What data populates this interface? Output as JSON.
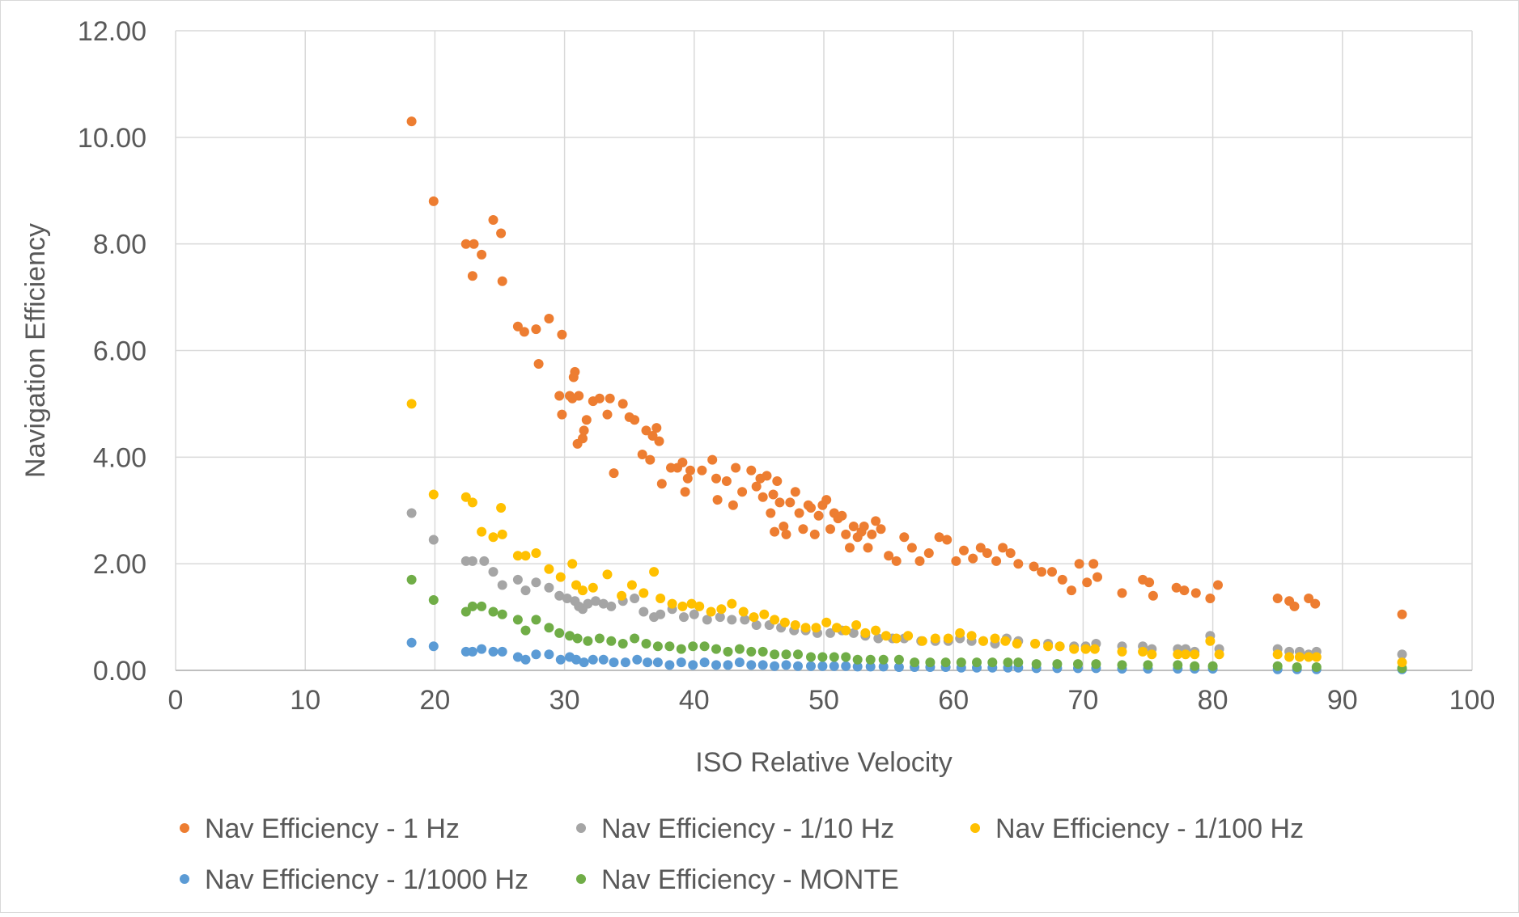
{
  "chart_data": {
    "type": "scatter",
    "title": "",
    "xlabel": "ISO Relative Velocity",
    "ylabel": "Navigation Efficiency",
    "xlim": [
      0,
      100
    ],
    "ylim": [
      0,
      12
    ],
    "x_ticks": [
      "0",
      "10",
      "20",
      "30",
      "40",
      "50",
      "60",
      "70",
      "80",
      "90",
      "100"
    ],
    "y_ticks": [
      "0.00",
      "2.00",
      "4.00",
      "6.00",
      "8.00",
      "10.00",
      "12.00"
    ],
    "grid": true,
    "legend_position": "bottom",
    "series": [
      {
        "name": "Nav Efficiency - 1 Hz",
        "color": "#ED7D31",
        "x": [
          18.2,
          19.9,
          22.4,
          22.9,
          23.0,
          23.6,
          24.5,
          25.1,
          25.2,
          26.4,
          26.9,
          27.8,
          28.0,
          28.8,
          29.6,
          29.8,
          29.8,
          30.4,
          30.6,
          30.7,
          30.8,
          31.0,
          31.1,
          31.4,
          31.5,
          31.7,
          32.2,
          32.7,
          33.3,
          33.5,
          33.8,
          34.5,
          35.0,
          35.4,
          36.0,
          36.3,
          36.6,
          36.8,
          37.1,
          37.3,
          37.5,
          38.2,
          38.7,
          39.1,
          39.3,
          39.5,
          39.7,
          40.6,
          41.4,
          41.7,
          41.8,
          42.5,
          43.0,
          43.2,
          43.7,
          44.4,
          44.8,
          45.1,
          45.3,
          45.6,
          45.9,
          46.1,
          46.2,
          46.4,
          46.6,
          46.9,
          47.1,
          47.4,
          47.8,
          48.1,
          48.4,
          48.8,
          49.0,
          49.3,
          49.6,
          49.9,
          50.2,
          50.5,
          50.8,
          51.1,
          51.4,
          51.7,
          52.0,
          52.3,
          52.6,
          52.9,
          53.1,
          53.4,
          53.7,
          54.0,
          54.4,
          55.0,
          55.6,
          56.2,
          56.8,
          57.4,
          58.1,
          58.9,
          59.5,
          60.2,
          60.8,
          61.5,
          62.1,
          62.6,
          63.3,
          63.8,
          64.4,
          65.0,
          66.2,
          66.8,
          67.6,
          68.4,
          69.1,
          69.7,
          70.3,
          70.8,
          71.1,
          73.0,
          74.6,
          75.1,
          75.4,
          77.2,
          77.8,
          78.7,
          79.8,
          80.4,
          85.0,
          85.9,
          86.3,
          87.4,
          87.9,
          94.6
        ],
        "y": [
          10.3,
          8.8,
          8.0,
          7.4,
          8.0,
          7.8,
          8.45,
          8.2,
          7.3,
          6.45,
          6.35,
          6.4,
          5.75,
          6.6,
          5.15,
          4.8,
          6.3,
          5.15,
          5.1,
          5.5,
          5.6,
          4.25,
          5.15,
          4.35,
          4.5,
          4.7,
          5.05,
          5.1,
          4.8,
          5.1,
          3.7,
          5.0,
          4.75,
          4.7,
          4.05,
          4.5,
          3.95,
          4.4,
          4.55,
          4.3,
          3.5,
          3.8,
          3.8,
          3.9,
          3.35,
          3.6,
          3.75,
          3.75,
          3.95,
          3.6,
          3.2,
          3.55,
          3.1,
          3.8,
          3.35,
          3.75,
          3.45,
          3.6,
          3.25,
          3.65,
          2.95,
          3.3,
          2.6,
          3.55,
          3.15,
          2.7,
          2.55,
          3.15,
          3.35,
          2.95,
          2.65,
          3.1,
          3.05,
          2.55,
          2.9,
          3.1,
          3.2,
          2.65,
          2.95,
          2.85,
          2.9,
          2.55,
          2.3,
          2.7,
          2.5,
          2.6,
          2.7,
          2.3,
          2.55,
          2.8,
          2.65,
          2.15,
          2.05,
          2.5,
          2.3,
          2.05,
          2.2,
          2.5,
          2.45,
          2.05,
          2.25,
          2.1,
          2.3,
          2.2,
          2.05,
          2.3,
          2.2,
          2.0,
          1.95,
          1.85,
          1.85,
          1.7,
          1.5,
          2.0,
          1.65,
          2.0,
          1.75,
          1.45,
          1.7,
          1.65,
          1.4,
          1.55,
          1.5,
          1.45,
          1.35,
          1.6,
          1.35,
          1.3,
          1.2,
          1.35,
          1.25,
          1.05
        ]
      },
      {
        "name": "Nav Efficiency - 1/10 Hz",
        "color": "#A5A5A5",
        "x": [
          18.2,
          19.9,
          22.4,
          22.9,
          23.8,
          24.5,
          25.2,
          26.4,
          27.0,
          27.8,
          28.8,
          29.6,
          30.2,
          30.8,
          31.1,
          31.4,
          31.8,
          32.4,
          33.0,
          33.6,
          34.5,
          35.4,
          36.1,
          36.9,
          37.4,
          38.3,
          39.2,
          40.0,
          41.0,
          42.0,
          42.9,
          43.9,
          44.8,
          45.8,
          46.7,
          47.7,
          48.6,
          49.5,
          50.5,
          51.4,
          52.3,
          53.2,
          54.2,
          55.3,
          56.2,
          57.5,
          58.6,
          59.6,
          60.5,
          61.4,
          62.3,
          63.2,
          64.1,
          65.0,
          66.3,
          67.3,
          68.2,
          69.3,
          70.2,
          71.0,
          73.0,
          74.6,
          75.3,
          77.3,
          77.9,
          78.6,
          79.8,
          80.5,
          85.0,
          85.9,
          86.7,
          87.4,
          88.0,
          94.6
        ],
        "y": [
          2.95,
          2.45,
          2.05,
          2.05,
          2.05,
          1.85,
          1.6,
          1.7,
          1.5,
          1.65,
          1.55,
          1.4,
          1.35,
          1.3,
          1.2,
          1.15,
          1.25,
          1.3,
          1.25,
          1.2,
          1.3,
          1.35,
          1.1,
          1.0,
          1.05,
          1.15,
          1.0,
          1.05,
          0.95,
          1.0,
          0.95,
          0.95,
          0.85,
          0.85,
          0.8,
          0.75,
          0.75,
          0.7,
          0.7,
          0.75,
          0.7,
          0.65,
          0.6,
          0.6,
          0.6,
          0.55,
          0.55,
          0.55,
          0.6,
          0.55,
          0.55,
          0.5,
          0.6,
          0.55,
          0.5,
          0.5,
          0.45,
          0.45,
          0.45,
          0.5,
          0.45,
          0.45,
          0.4,
          0.4,
          0.4,
          0.35,
          0.65,
          0.4,
          0.4,
          0.35,
          0.35,
          0.3,
          0.35,
          0.3
        ]
      },
      {
        "name": "Nav Efficiency - 1/100 Hz",
        "color": "#FFC000",
        "x": [
          18.2,
          19.9,
          22.4,
          22.9,
          23.6,
          24.5,
          25.1,
          25.2,
          26.4,
          27.0,
          27.8,
          28.8,
          29.7,
          30.6,
          30.9,
          31.4,
          32.2,
          33.3,
          34.4,
          35.2,
          36.1,
          36.9,
          37.4,
          38.3,
          39.1,
          39.8,
          40.4,
          41.3,
          42.1,
          42.9,
          43.8,
          44.6,
          45.4,
          46.2,
          47.0,
          47.8,
          48.6,
          49.4,
          50.2,
          51.0,
          51.7,
          52.5,
          53.2,
          54.0,
          54.8,
          55.6,
          56.5,
          57.6,
          58.6,
          59.6,
          60.5,
          61.4,
          62.3,
          63.2,
          64.0,
          64.9,
          66.3,
          67.3,
          68.2,
          69.3,
          70.2,
          70.9,
          73.0,
          74.6,
          75.3,
          77.3,
          77.9,
          78.6,
          79.8,
          80.5,
          85.0,
          85.9,
          86.7,
          87.4,
          88.0,
          94.6
        ],
        "y": [
          5.0,
          3.3,
          3.25,
          3.15,
          2.6,
          2.5,
          3.05,
          2.55,
          2.15,
          2.15,
          2.2,
          1.9,
          1.75,
          2.0,
          1.6,
          1.5,
          1.55,
          1.8,
          1.4,
          1.6,
          1.45,
          1.85,
          1.35,
          1.25,
          1.2,
          1.25,
          1.2,
          1.1,
          1.15,
          1.25,
          1.1,
          1.0,
          1.05,
          0.95,
          0.9,
          0.85,
          0.8,
          0.8,
          0.9,
          0.8,
          0.75,
          0.85,
          0.7,
          0.75,
          0.65,
          0.6,
          0.65,
          0.55,
          0.6,
          0.6,
          0.7,
          0.65,
          0.55,
          0.6,
          0.55,
          0.5,
          0.5,
          0.45,
          0.45,
          0.4,
          0.4,
          0.4,
          0.35,
          0.35,
          0.3,
          0.3,
          0.3,
          0.3,
          0.55,
          0.3,
          0.3,
          0.25,
          0.25,
          0.25,
          0.25,
          0.15
        ]
      },
      {
        "name": "Nav Efficiency - 1/1000 Hz",
        "color": "#5B9BD5",
        "x": [
          18.2,
          19.9,
          22.4,
          22.9,
          23.6,
          24.5,
          25.2,
          26.4,
          27.0,
          27.8,
          28.8,
          29.7,
          30.4,
          30.9,
          31.5,
          32.2,
          33.0,
          33.8,
          34.7,
          35.6,
          36.4,
          37.2,
          38.1,
          39.0,
          39.9,
          40.8,
          41.7,
          42.6,
          43.5,
          44.4,
          45.3,
          46.2,
          47.1,
          48.0,
          49.0,
          49.9,
          50.8,
          51.7,
          52.6,
          53.6,
          54.6,
          55.8,
          57.0,
          58.2,
          59.4,
          60.6,
          61.8,
          63.0,
          64.2,
          65.0,
          66.4,
          68.0,
          69.6,
          71.0,
          73.0,
          75.0,
          77.3,
          78.6,
          80.0,
          85.0,
          86.5,
          88.0,
          94.6
        ],
        "y": [
          0.52,
          0.45,
          0.35,
          0.35,
          0.4,
          0.35,
          0.35,
          0.25,
          0.2,
          0.3,
          0.3,
          0.2,
          0.25,
          0.2,
          0.15,
          0.2,
          0.2,
          0.15,
          0.15,
          0.2,
          0.15,
          0.15,
          0.1,
          0.15,
          0.1,
          0.15,
          0.1,
          0.1,
          0.15,
          0.1,
          0.1,
          0.08,
          0.1,
          0.08,
          0.08,
          0.08,
          0.08,
          0.08,
          0.07,
          0.07,
          0.07,
          0.06,
          0.06,
          0.06,
          0.06,
          0.05,
          0.05,
          0.05,
          0.05,
          0.05,
          0.04,
          0.04,
          0.04,
          0.04,
          0.03,
          0.03,
          0.03,
          0.03,
          0.03,
          0.02,
          0.02,
          0.02,
          0.02
        ]
      },
      {
        "name": "Nav Efficiency - MONTE",
        "color": "#70AD47",
        "x": [
          18.2,
          19.9,
          22.4,
          22.9,
          23.6,
          24.5,
          25.2,
          26.4,
          27.0,
          27.8,
          28.8,
          29.6,
          30.4,
          31.0,
          31.8,
          32.7,
          33.6,
          34.5,
          35.4,
          36.3,
          37.2,
          38.1,
          39.0,
          39.9,
          40.8,
          41.7,
          42.6,
          43.5,
          44.4,
          45.3,
          46.2,
          47.1,
          48.0,
          49.0,
          49.9,
          50.8,
          51.7,
          52.6,
          53.6,
          54.6,
          55.8,
          57.0,
          58.2,
          59.4,
          60.6,
          61.8,
          63.0,
          64.2,
          65.0,
          66.4,
          68.0,
          69.6,
          71.0,
          73.0,
          75.0,
          77.3,
          78.6,
          80.0,
          85.0,
          86.5,
          88.0,
          94.6
        ],
        "y": [
          1.7,
          1.32,
          1.1,
          1.2,
          1.2,
          1.1,
          1.05,
          0.95,
          0.75,
          0.95,
          0.8,
          0.7,
          0.65,
          0.6,
          0.55,
          0.6,
          0.55,
          0.5,
          0.6,
          0.5,
          0.45,
          0.45,
          0.4,
          0.45,
          0.45,
          0.4,
          0.35,
          0.4,
          0.35,
          0.35,
          0.3,
          0.3,
          0.3,
          0.25,
          0.25,
          0.25,
          0.25,
          0.2,
          0.2,
          0.2,
          0.2,
          0.15,
          0.15,
          0.15,
          0.15,
          0.15,
          0.15,
          0.15,
          0.15,
          0.12,
          0.12,
          0.12,
          0.12,
          0.1,
          0.1,
          0.1,
          0.08,
          0.08,
          0.08,
          0.06,
          0.06,
          0.04
        ]
      }
    ]
  }
}
